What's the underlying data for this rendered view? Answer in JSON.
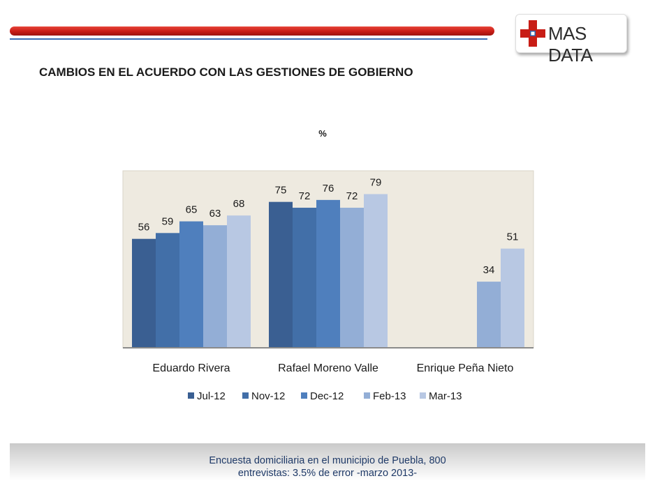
{
  "header": {
    "logo_text": "MAS DATA",
    "title": "CAMBIOS EN EL ACUERDO CON LAS GESTIONES DE GOBIERNO"
  },
  "colors": {
    "bar_top": "#c81d16",
    "rule": "#3b6db3",
    "plot_bg": "#eeeae0",
    "footer_text": "#1f3a68"
  },
  "chart_data": {
    "type": "bar",
    "title": "%",
    "categories": [
      "Eduardo Rivera",
      "Rafael Moreno Valle",
      "Enrique Peña Nieto"
    ],
    "series": [
      {
        "name": "Jul-12",
        "color": "#3a5f92",
        "values": [
          56,
          75,
          null
        ]
      },
      {
        "name": "Nov-12",
        "color": "#426fa8",
        "values": [
          59,
          72,
          null
        ]
      },
      {
        "name": "Dec-12",
        "color": "#4f7fbd",
        "values": [
          65,
          76,
          null
        ]
      },
      {
        "name": "Feb-13",
        "color": "#93aed6",
        "values": [
          63,
          72,
          34
        ]
      },
      {
        "name": "Mar-13",
        "color": "#b8c8e3",
        "values": [
          68,
          79,
          51
        ]
      }
    ],
    "ylim": [
      0,
      91
    ],
    "grid": false,
    "legend": "bottom",
    "data_labels": true
  },
  "footer": {
    "line1": "Encuesta domiciliaria en el municipio de Puebla, 800",
    "line2": "entrevistas: 3.5% de error -marzo 2013-"
  }
}
